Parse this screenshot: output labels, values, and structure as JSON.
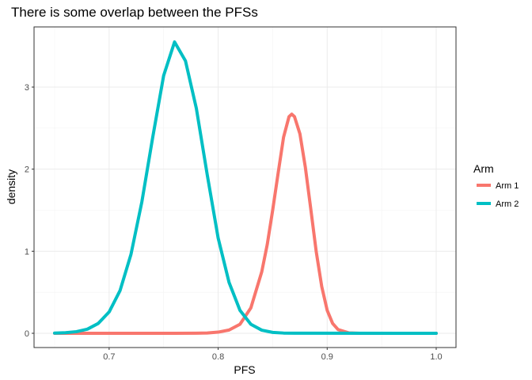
{
  "chart_data": {
    "type": "line",
    "title": "There is some overlap between the PFSs",
    "xlabel": "PFS",
    "ylabel": "density",
    "xlim": [
      0.65,
      1.0
    ],
    "ylim": [
      0,
      3.55
    ],
    "x_ticks": [
      0.7,
      0.8,
      0.9,
      1.0
    ],
    "x_tick_labels": [
      "0.7",
      "0.8",
      "0.9",
      "1.0"
    ],
    "y_ticks": [
      0,
      1,
      2,
      3
    ],
    "y_tick_labels": [
      "0",
      "1",
      "2",
      "3"
    ],
    "grid": true,
    "legend": {
      "title": "Arm",
      "placement": "right"
    },
    "series": [
      {
        "name": "Arm 1",
        "color": "#F8766D",
        "x": [
          0.65,
          0.76,
          0.78,
          0.79,
          0.8,
          0.81,
          0.82,
          0.83,
          0.84,
          0.845,
          0.85,
          0.855,
          0.86,
          0.865,
          0.8675,
          0.87,
          0.875,
          0.88,
          0.885,
          0.89,
          0.895,
          0.9,
          0.905,
          0.91,
          0.92,
          0.93,
          0.94,
          1.0
        ],
        "y": [
          0,
          0,
          0.001,
          0.004,
          0.014,
          0.04,
          0.11,
          0.31,
          0.75,
          1.08,
          1.5,
          1.95,
          2.39,
          2.64,
          2.67,
          2.64,
          2.43,
          2.02,
          1.51,
          0.99,
          0.57,
          0.28,
          0.12,
          0.045,
          0.005,
          0.0005,
          0,
          0
        ]
      },
      {
        "name": "Arm 2",
        "color": "#00BFC4",
        "x": [
          0.65,
          0.66,
          0.67,
          0.68,
          0.69,
          0.7,
          0.71,
          0.72,
          0.73,
          0.74,
          0.75,
          0.76,
          0.77,
          0.78,
          0.79,
          0.8,
          0.81,
          0.82,
          0.83,
          0.84,
          0.85,
          0.86,
          0.87,
          1.0
        ],
        "y": [
          0.002,
          0.007,
          0.02,
          0.05,
          0.12,
          0.26,
          0.52,
          0.96,
          1.6,
          2.39,
          3.14,
          3.55,
          3.32,
          2.74,
          1.93,
          1.16,
          0.62,
          0.28,
          0.11,
          0.038,
          0.011,
          0.003,
          0.001,
          0
        ]
      }
    ]
  }
}
